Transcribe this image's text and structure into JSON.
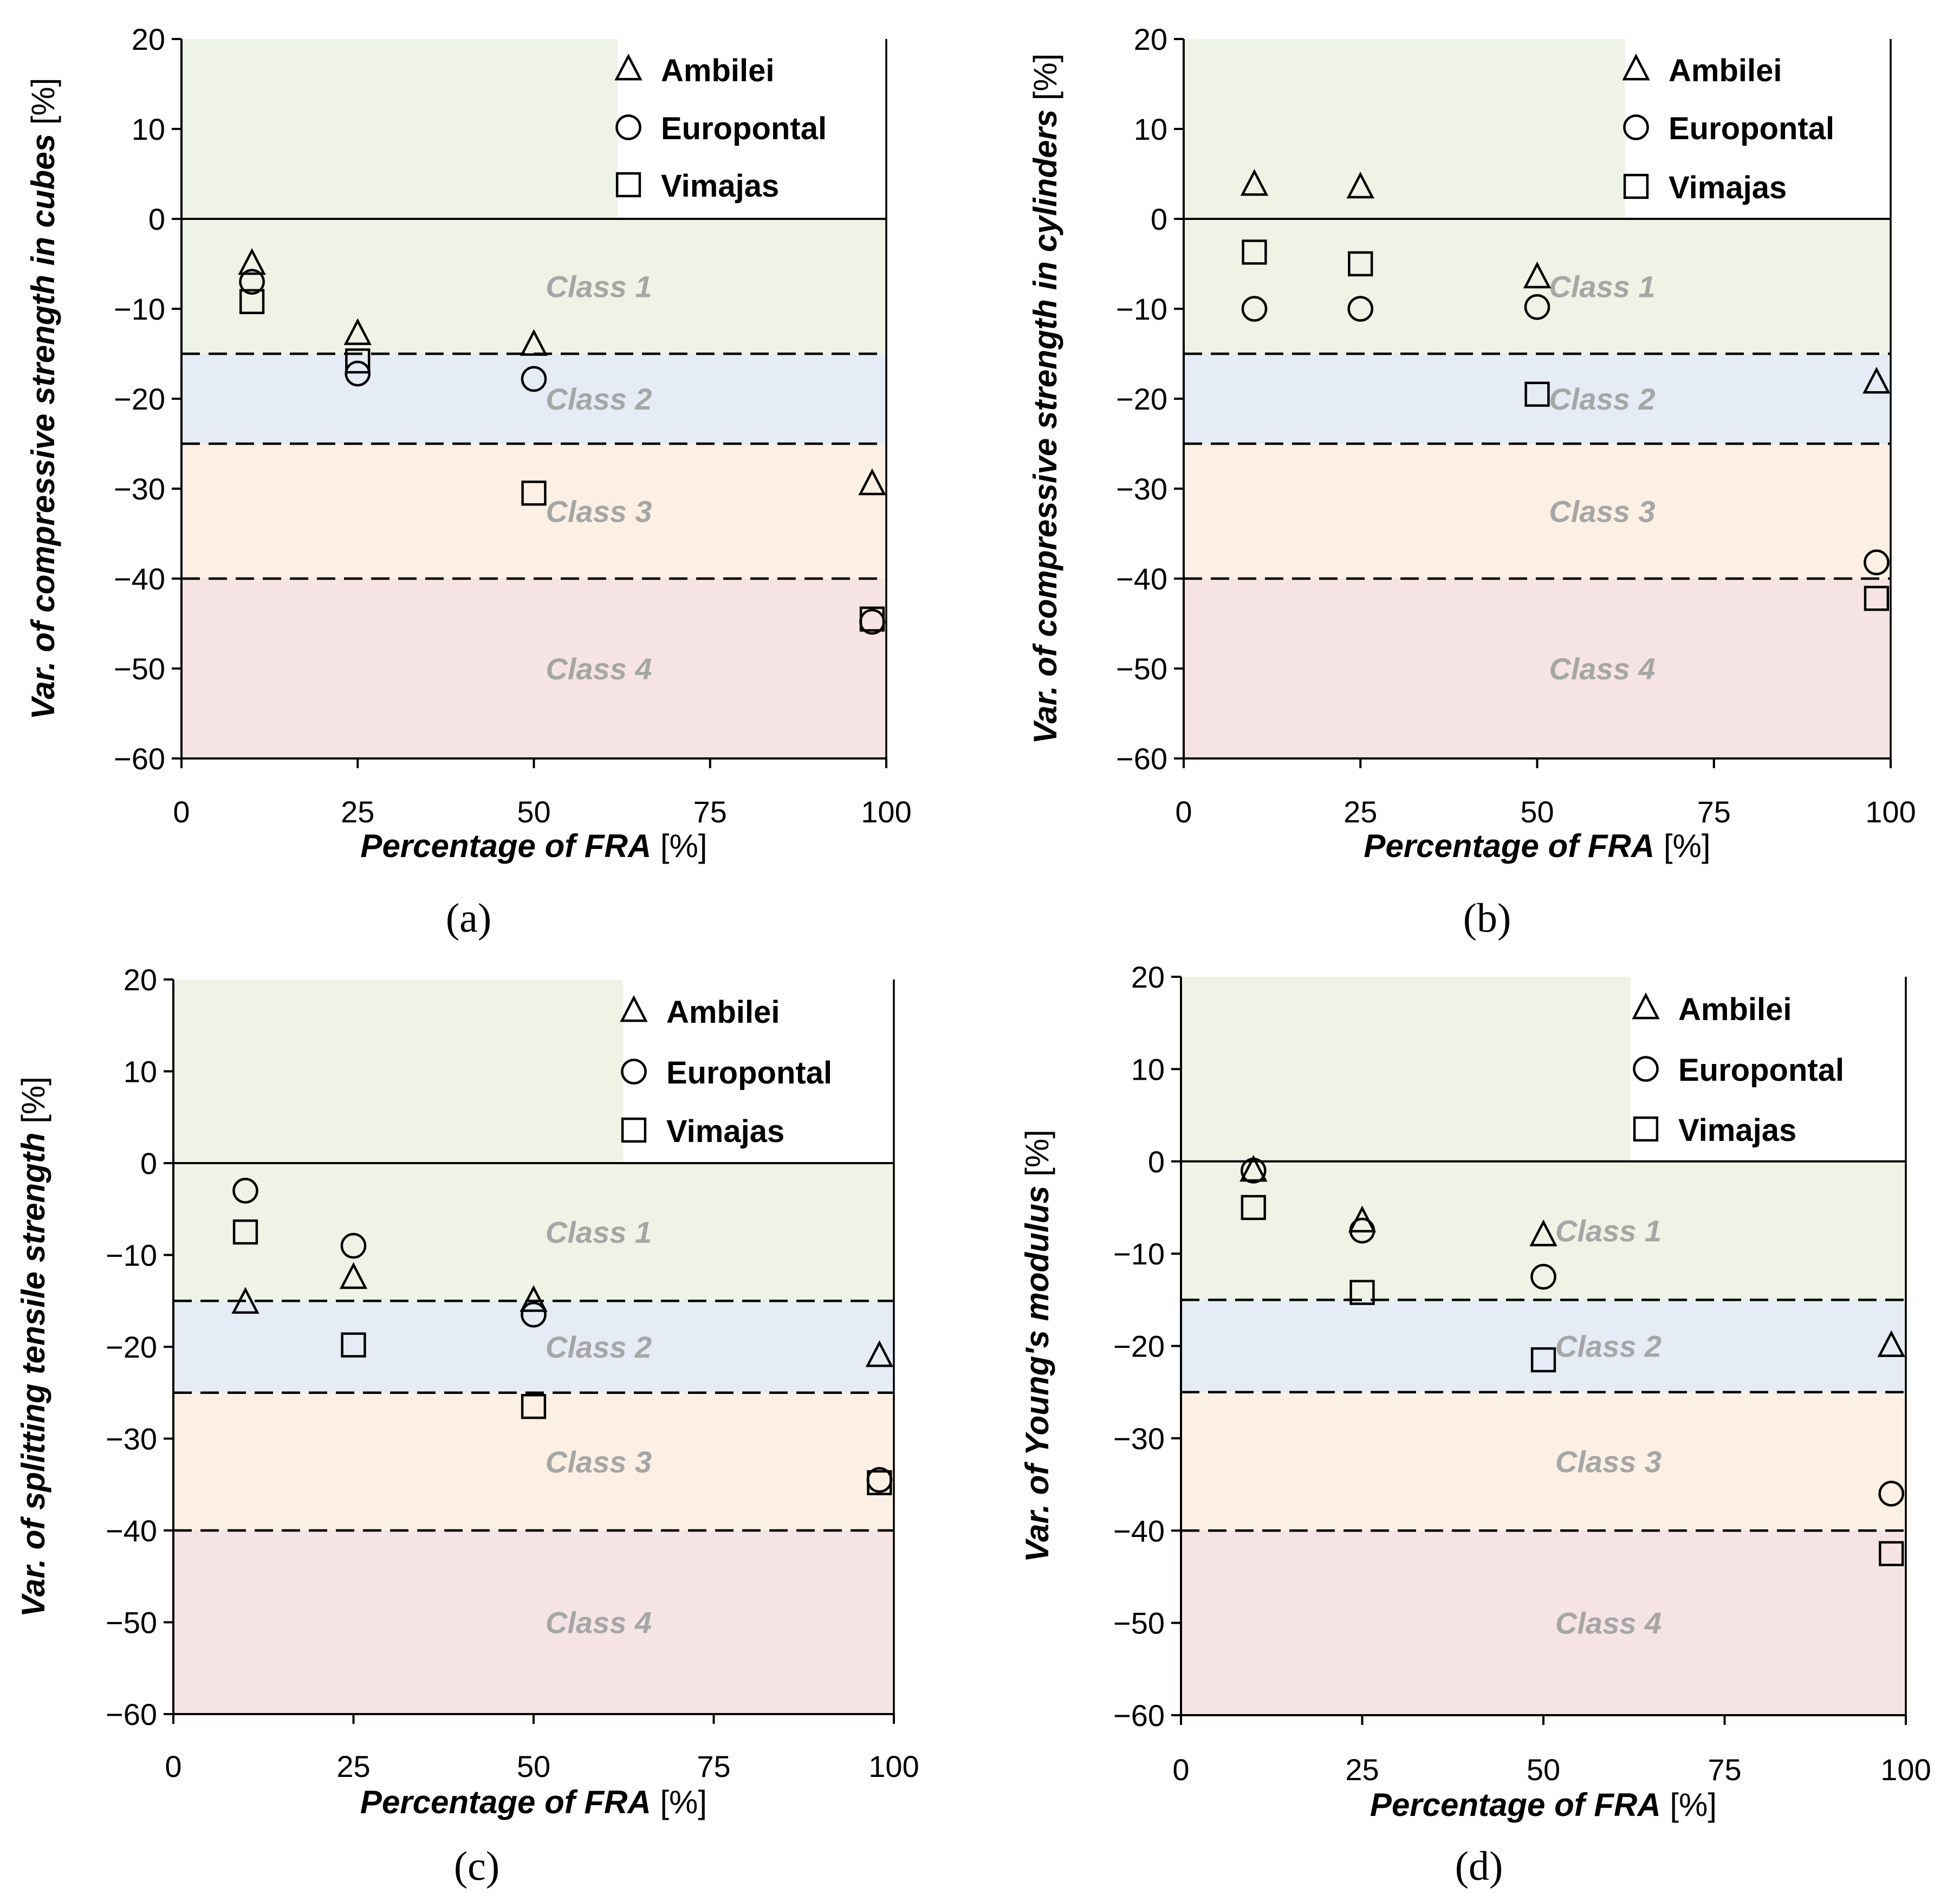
{
  "colors": {
    "class1": "#eff3e6",
    "class2": "#e6ecf5",
    "class3": "#fcf0e4",
    "class4": "#f6e4e4",
    "axis": "#000000",
    "grid_dash": "#000000",
    "class_label": "#a6a6a6",
    "marker_stroke": "#000000",
    "legend_bg": "#ffffff"
  },
  "legend": {
    "entries": [
      {
        "name": "Ambilei",
        "marker": "triangle"
      },
      {
        "name": "Europontal",
        "marker": "circle"
      },
      {
        "name": "Vimajas",
        "marker": "square"
      }
    ]
  },
  "class_bands": [
    {
      "label": "Class 1",
      "from": 0,
      "to": -15
    },
    {
      "label": "Class 2",
      "from": -15,
      "to": -25
    },
    {
      "label": "Class 3",
      "from": -25,
      "to": -40
    },
    {
      "label": "Class 4",
      "from": -40,
      "to": -60
    }
  ],
  "chart_data": [
    {
      "type": "scatter",
      "panel_label": "(a)",
      "xlabel_italic": "Percentage of FRA",
      "xlabel_unit": " [%]",
      "ylabel_italic": "Var. of compressive  strength in cubes",
      "ylabel_unit": " [%]",
      "xlim": [
        0,
        100
      ],
      "ylim": [
        -60,
        20
      ],
      "xticks": [
        0,
        25,
        50,
        75,
        100
      ],
      "yticks": [
        20,
        10,
        0,
        -10,
        -20,
        -30,
        -40,
        -50,
        -60
      ],
      "x": [
        10,
        25,
        50,
        98
      ],
      "series": [
        {
          "name": "Ambilei",
          "marker": "triangle",
          "values": [
            -5,
            -12.8,
            -14,
            -29.5
          ]
        },
        {
          "name": "Europontal",
          "marker": "circle",
          "values": [
            -7,
            -17.2,
            -17.8,
            -44.8
          ]
        },
        {
          "name": "Vimajas",
          "marker": "square",
          "values": [
            -9.2,
            -15.8,
            -30.5,
            -44.5
          ]
        }
      ]
    },
    {
      "type": "scatter",
      "panel_label": "(b)",
      "xlabel_italic": "Percentage of FRA",
      "xlabel_unit": " [%]",
      "ylabel_italic": "Var. of compressive  strength in cylinders",
      "ylabel_unit": " [%]",
      "xlim": [
        0,
        100
      ],
      "ylim": [
        -60,
        20
      ],
      "xticks": [
        0,
        25,
        50,
        75,
        100
      ],
      "yticks": [
        20,
        10,
        0,
        -10,
        -20,
        -30,
        -40,
        -50,
        -60
      ],
      "x": [
        10,
        25,
        50,
        98
      ],
      "series": [
        {
          "name": "Ambilei",
          "marker": "triangle",
          "values": [
            3.8,
            3.5,
            -6.5,
            -18.2
          ]
        },
        {
          "name": "Europontal",
          "marker": "circle",
          "values": [
            -10,
            -10,
            -9.8,
            -38.2
          ]
        },
        {
          "name": "Vimajas",
          "marker": "square",
          "values": [
            -3.7,
            -5,
            -19.5,
            -42.2
          ]
        }
      ]
    },
    {
      "type": "scatter",
      "panel_label": "(c)",
      "xlabel_italic": "Percentage of FRA",
      "xlabel_unit": " [%]",
      "ylabel_italic": "Var. of splitting tensile strength",
      "ylabel_unit": " [%]",
      "xlim": [
        0,
        100
      ],
      "ylim": [
        -60,
        20
      ],
      "xticks": [
        0,
        25,
        50,
        75,
        100
      ],
      "yticks": [
        20,
        10,
        0,
        -10,
        -20,
        -30,
        -40,
        -50,
        -60
      ],
      "x": [
        10,
        25,
        50,
        98
      ],
      "series": [
        {
          "name": "Ambilei",
          "marker": "triangle",
          "values": [
            -15.2,
            -12.5,
            -15,
            -21
          ]
        },
        {
          "name": "Europontal",
          "marker": "circle",
          "values": [
            -3,
            -9,
            -16.5,
            -34.5
          ]
        },
        {
          "name": "Vimajas",
          "marker": "square",
          "values": [
            -7.5,
            -19.8,
            -26.5,
            -34.8
          ]
        }
      ]
    },
    {
      "type": "scatter",
      "panel_label": "(d)",
      "xlabel_italic": "Percentage of FRA",
      "xlabel_unit": " [%]",
      "ylabel_italic": "Var. of Young's modulus",
      "ylabel_unit": " [%]",
      "xlim": [
        0,
        100
      ],
      "ylim": [
        -60,
        20
      ],
      "xticks": [
        0,
        25,
        50,
        75,
        100
      ],
      "yticks": [
        20,
        10,
        0,
        -10,
        -20,
        -30,
        -40,
        -50,
        -60
      ],
      "x": [
        10,
        25,
        50,
        98
      ],
      "series": [
        {
          "name": "Ambilei",
          "marker": "triangle",
          "values": [
            -1,
            -6.5,
            -8,
            -20
          ]
        },
        {
          "name": "Europontal",
          "marker": "circle",
          "values": [
            -1,
            -7.5,
            -12.5,
            -36
          ]
        },
        {
          "name": "Vimajas",
          "marker": "square",
          "values": [
            -5,
            -14.2,
            -21.5,
            -42.5
          ]
        }
      ]
    }
  ]
}
